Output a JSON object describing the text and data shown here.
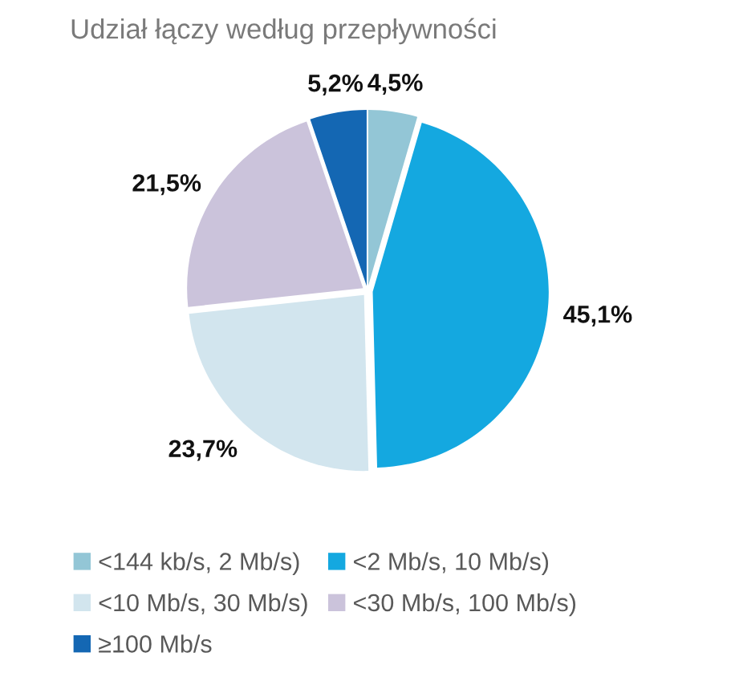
{
  "chart_data": {
    "type": "pie",
    "title": "Udział łączy według przepływności",
    "categories": [
      "<144 kb/s, 2 Mb/s)",
      "<2 Mb/s, 10 Mb/s)",
      "<10 Mb/s, 30 Mb/s)",
      "<30 Mb/s, 100 Mb/s)",
      "≥100 Mb/s"
    ],
    "values": [
      4.5,
      45.1,
      23.7,
      21.5,
      5.2
    ],
    "colors": [
      "#93c6d6",
      "#14a8e0",
      "#d2e5ee",
      "#cbc3db",
      "#1467b3"
    ],
    "value_labels": [
      "4,5%",
      "45,1%",
      "23,7%",
      "21,5%",
      "5,2%"
    ],
    "legend": "bottom"
  }
}
